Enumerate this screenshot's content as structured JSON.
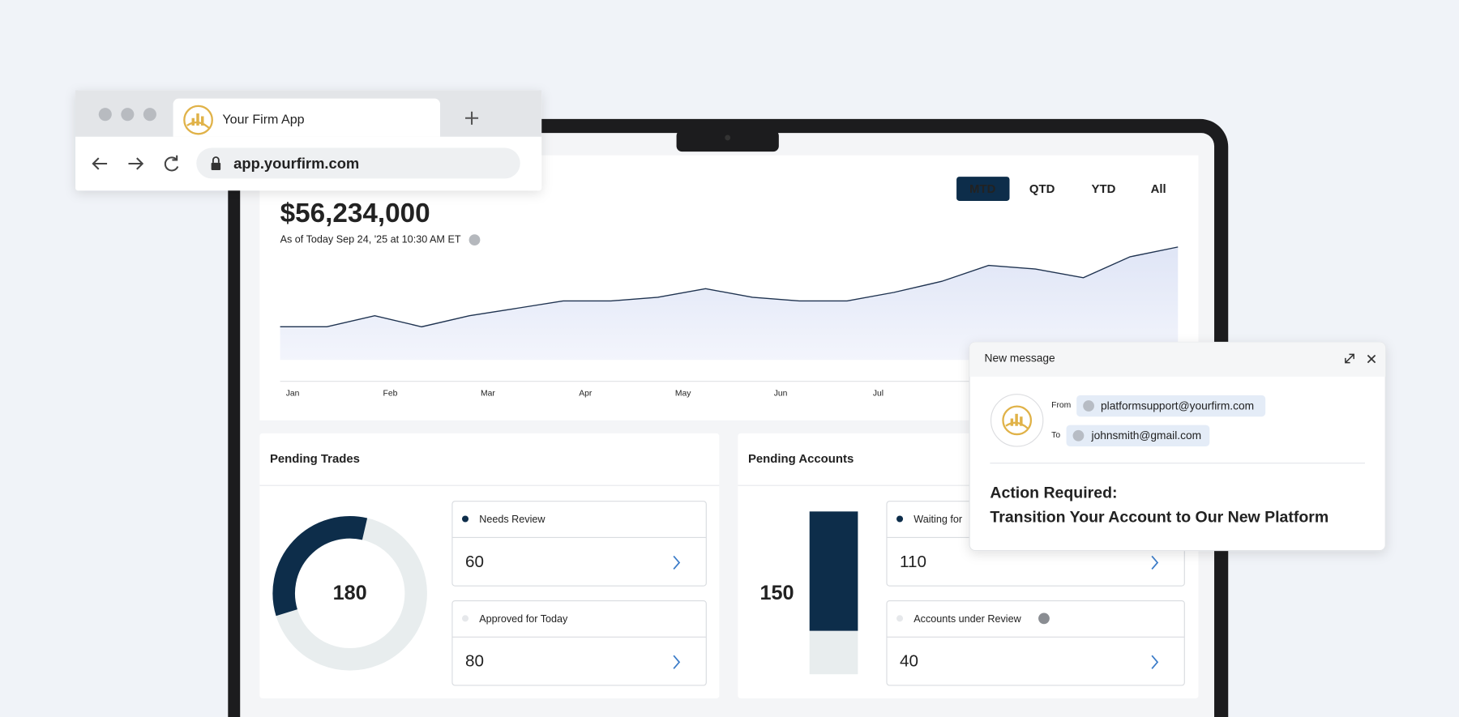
{
  "browser": {
    "tab_title": "Your Firm App",
    "url": "app.yourfirm.com"
  },
  "dashboard": {
    "balance": "$56,234,000",
    "as_of": "As of Today Sep 24, '25 at  10:30 AM ET",
    "periods": [
      "MTD",
      "QTD",
      "YTD",
      "All"
    ]
  },
  "chart_data": {
    "type": "line",
    "color": "#1f3350",
    "x": [
      -0.1,
      0.38,
      0.87,
      1.35,
      1.84,
      2.32,
      2.8,
      3.29,
      3.77,
      4.26,
      4.74,
      5.22,
      5.71,
      6.19,
      6.68,
      7.16,
      7.64,
      8.13,
      8.61,
      9.1
    ],
    "values": [
      27,
      27,
      36,
      27,
      36,
      42,
      48,
      48,
      51,
      58,
      51,
      48,
      48,
      55,
      64,
      77,
      74,
      67,
      84,
      92
    ],
    "xlim": [
      -0.1,
      9.1
    ],
    "ylim": [
      0,
      100
    ],
    "xticks": [
      {
        "value": 0,
        "label": "Jan"
      },
      {
        "value": 1,
        "label": "Feb"
      },
      {
        "value": 2,
        "label": "Mar"
      },
      {
        "value": 3,
        "label": "Apr"
      },
      {
        "value": 4,
        "label": "May"
      },
      {
        "value": 5,
        "label": "Jun"
      },
      {
        "value": 6,
        "label": "Jul"
      }
    ]
  },
  "pending_trades": {
    "title": "Pending Trades",
    "total": 180,
    "items": [
      {
        "label": "Needs Review",
        "value": 60
      },
      {
        "label": "Approved for Today",
        "value": 80
      }
    ]
  },
  "pending_accounts": {
    "title": "Pending Accounts",
    "total": 150,
    "items": [
      {
        "label": "Waiting for",
        "value": 110
      },
      {
        "label": "Accounts under Review",
        "value": 40
      }
    ]
  },
  "email": {
    "header": "New message",
    "from_label": "From",
    "from": "platformsupport@yourfirm.com",
    "to_label": "To",
    "to": "johnsmith@gmail.com",
    "subject_lines": [
      "Action Required:",
      "Transition Your Account to Our New Platform"
    ]
  }
}
